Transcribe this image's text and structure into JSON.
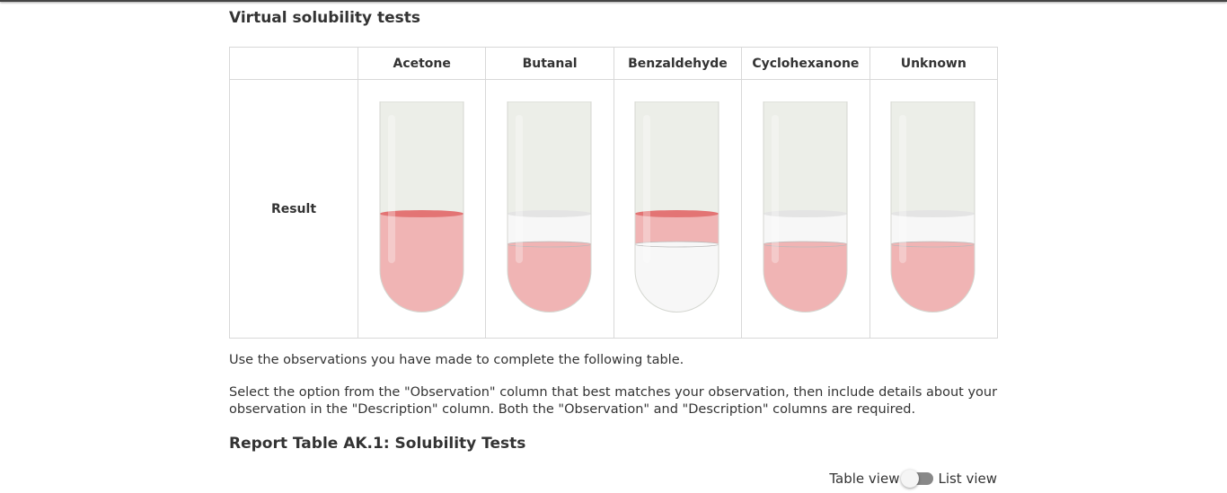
{
  "heading": "Virtual solubility tests",
  "table": {
    "columns": [
      "Acetone",
      "Butanal",
      "Benzaldehyde",
      "Cyclohexanone",
      "Unknown"
    ],
    "row_label": "Result"
  },
  "instructions": [
    "Use the observations you have made to complete the following table.",
    "Select the option from the \"Observation\" column that best matches your observation, then include details about your observation in the \"Description\" column. Both the \"Observation\" and \"Description\" columns are required."
  ],
  "report_title": "Report Table AK.1: Solubility Tests",
  "view_toggle": {
    "left": "Table view",
    "right": "List view"
  }
}
